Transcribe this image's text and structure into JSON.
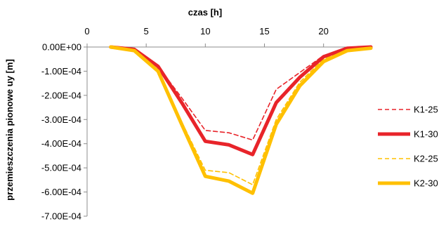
{
  "chart_data": {
    "type": "line",
    "xlabel": "czas [h]",
    "ylabel": "przemieszczenia pionowe uy [m]",
    "xlim": [
      0,
      24
    ],
    "ylim": [
      -0.0007,
      0
    ],
    "x_ticks": [
      {
        "value": 0,
        "label": "0"
      },
      {
        "value": 5,
        "label": "5"
      },
      {
        "value": 10,
        "label": "10"
      },
      {
        "value": 15,
        "label": "15"
      },
      {
        "value": 20,
        "label": "20"
      }
    ],
    "y_ticks": [
      {
        "value": 0,
        "label": "0.00E+00"
      },
      {
        "value": -0.0001,
        "label": "-1.00E-04"
      },
      {
        "value": -0.0002,
        "label": "-2.00E-04"
      },
      {
        "value": -0.0003,
        "label": "-3.00E-04"
      },
      {
        "value": -0.0004,
        "label": "-4.00E-04"
      },
      {
        "value": -0.0005,
        "label": "-5.00E-04"
      },
      {
        "value": -0.0006,
        "label": "-6.00E-04"
      },
      {
        "value": -0.0007,
        "label": "-7.00E-04"
      }
    ],
    "x_axis_position": "top",
    "grid": false,
    "legend_position": "right",
    "x": [
      2,
      4,
      6,
      8,
      10,
      12,
      14,
      16,
      18,
      20,
      22,
      24
    ],
    "series": [
      {
        "name": "K1-25",
        "color": "#e8242a",
        "style": "dashed",
        "width": "thin",
        "values": [
          0,
          -1e-05,
          -8e-05,
          -0.00021,
          -0.000345,
          -0.000355,
          -0.000385,
          -0.000175,
          -0.000105,
          -3.5e-05,
          -8e-06,
          0
        ]
      },
      {
        "name": "K1-30",
        "color": "#e8242a",
        "style": "solid",
        "width": "thick",
        "values": [
          0,
          -1e-05,
          -8e-05,
          -0.00023,
          -0.00039,
          -0.000405,
          -0.000445,
          -0.00023,
          -0.000125,
          -4e-05,
          -5e-06,
          0
        ]
      },
      {
        "name": "K2-25",
        "color": "#ffc000",
        "style": "dashed",
        "width": "thin",
        "values": [
          0,
          -1.5e-05,
          -9.5e-05,
          -0.00031,
          -0.00051,
          -0.00052,
          -0.00057,
          -0.0003,
          -0.000145,
          -5e-05,
          -1e-05,
          0
        ]
      },
      {
        "name": "K2-30",
        "color": "#ffc000",
        "style": "solid",
        "width": "thick",
        "values": [
          0,
          -1.5e-05,
          -0.0001,
          -0.00032,
          -0.000535,
          -0.000555,
          -0.000605,
          -0.00032,
          -0.00016,
          -6e-05,
          -1.5e-05,
          -5e-06
        ]
      }
    ]
  }
}
